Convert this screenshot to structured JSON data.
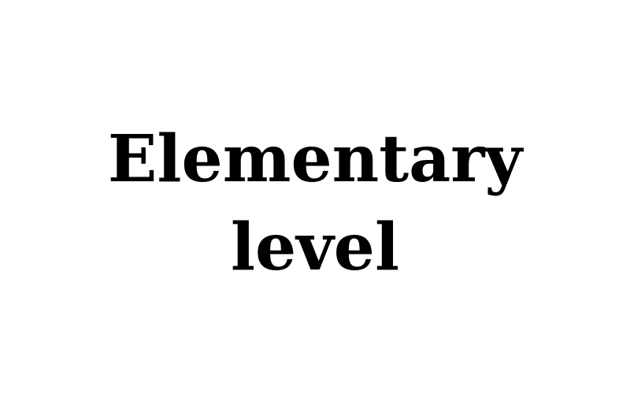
{
  "title": {
    "line1": "Elementary",
    "line2": "level"
  },
  "colors": {
    "background": "#ffffff",
    "text": "#000000"
  }
}
